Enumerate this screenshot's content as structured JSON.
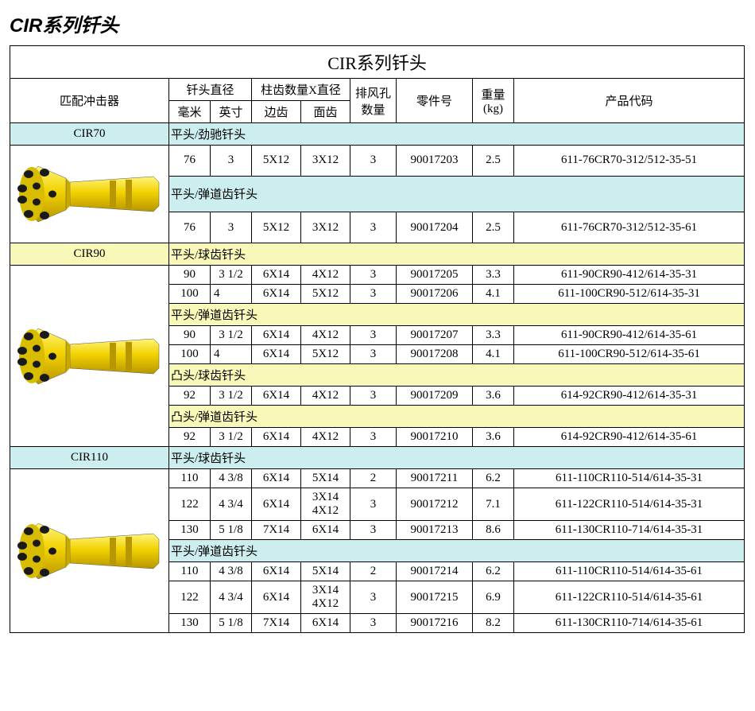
{
  "pageTitle": "CIR系列钎头",
  "tableTitle": "CIR系列钎头",
  "headers": {
    "impactor": "匹配冲击器",
    "diameter": "钎头直径",
    "buttons": "柱齿数量X直径",
    "mm": "毫米",
    "inch": "英寸",
    "side": "边齿",
    "face": "面齿",
    "holes": "排风孔\n数量",
    "part": "零件号",
    "weight": "重量\n(kg)",
    "code": "产品代码"
  },
  "colors": {
    "blue": "#cceeee",
    "yellow": "#f8f8b8",
    "bitBody": "#f2d200",
    "bitDark": "#c7a900",
    "button": "#1a1a1a"
  },
  "groups": [
    {
      "name": "CIR70",
      "nameBg": "blue",
      "sections": [
        {
          "label": "平头/劲驰钎头",
          "bg": "blue",
          "rows": [
            {
              "mm": "76",
              "in": "3",
              "side": "5X12",
              "face": "3X12",
              "holes": "3",
              "part": "90017203",
              "wt": "2.5",
              "code": "611-76CR70-312/512-35-51"
            }
          ]
        },
        {
          "label": "平头/弹道齿钎头",
          "bg": "blue",
          "rows": [
            {
              "mm": "76",
              "in": "3",
              "side": "5X12",
              "face": "3X12",
              "holes": "3",
              "part": "90017204",
              "wt": "2.5",
              "code": "611-76CR70-312/512-35-61"
            }
          ]
        }
      ]
    },
    {
      "name": "CIR90",
      "nameBg": "yellow",
      "sections": [
        {
          "label": "平头/球齿钎头",
          "bg": "yellow",
          "rows": [
            {
              "mm": "90",
              "in": "3 1/2",
              "side": "6X14",
              "face": "4X12",
              "holes": "3",
              "part": "90017205",
              "wt": "3.3",
              "code": "611-90CR90-412/614-35-31"
            },
            {
              "mm": "100",
              "in": "4",
              "side": "6X14",
              "face": "5X12",
              "holes": "3",
              "part": "90017206",
              "wt": "4.1",
              "code": "611-100CR90-512/614-35-31",
              "leftIn": true
            }
          ]
        },
        {
          "label": "平头/弹道齿钎头",
          "bg": "yellow",
          "rows": [
            {
              "mm": "90",
              "in": "3 1/2",
              "side": "6X14",
              "face": "4X12",
              "holes": "3",
              "part": "90017207",
              "wt": "3.3",
              "code": "611-90CR90-412/614-35-61"
            },
            {
              "mm": "100",
              "in": "4",
              "side": "6X14",
              "face": "5X12",
              "holes": "3",
              "part": "90017208",
              "wt": "4.1",
              "code": "611-100CR90-512/614-35-61",
              "leftIn": true
            }
          ]
        },
        {
          "label": "凸头/球齿钎头",
          "bg": "yellow",
          "rows": [
            {
              "mm": "92",
              "in": "3 1/2",
              "side": "6X14",
              "face": "4X12",
              "holes": "3",
              "part": "90017209",
              "wt": "3.6",
              "code": "614-92CR90-412/614-35-31"
            }
          ]
        },
        {
          "label": "凸头/弹道齿钎头",
          "bg": "yellow",
          "rows": [
            {
              "mm": "92",
              "in": "3 1/2",
              "side": "6X14",
              "face": "4X12",
              "holes": "3",
              "part": "90017210",
              "wt": "3.6",
              "code": "614-92CR90-412/614-35-61"
            }
          ]
        }
      ]
    },
    {
      "name": "CIR110",
      "nameBg": "blue",
      "sections": [
        {
          "label": "平头/球齿钎头",
          "bg": "blue",
          "rows": [
            {
              "mm": "110",
              "in": "4 3/8",
              "side": "6X14",
              "face": "5X14",
              "holes": "2",
              "part": "90017211",
              "wt": "6.2",
              "code": "611-110CR110-514/614-35-31"
            },
            {
              "mm": "122",
              "in": "4 3/4",
              "side": "6X14",
              "face": "3X14\n4X12",
              "holes": "3",
              "part": "90017212",
              "wt": "7.1",
              "code": "611-122CR110-514/614-35-31"
            },
            {
              "mm": "130",
              "in": "5 1/8",
              "side": "7X14",
              "face": "6X14",
              "holes": "3",
              "part": "90017213",
              "wt": "8.6",
              "code": "611-130CR110-714/614-35-31"
            }
          ]
        },
        {
          "label": "平头/弹道齿钎头",
          "bg": "blue",
          "rows": [
            {
              "mm": "110",
              "in": "4 3/8",
              "side": "6X14",
              "face": "5X14",
              "holes": "2",
              "part": "90017214",
              "wt": "6.2",
              "code": "611-110CR110-514/614-35-61"
            },
            {
              "mm": "122",
              "in": "4 3/4",
              "side": "6X14",
              "face": "3X14\n4X12",
              "holes": "3",
              "part": "90017215",
              "wt": "6.9",
              "code": "611-122CR110-514/614-35-61"
            },
            {
              "mm": "130",
              "in": "5 1/8",
              "side": "7X14",
              "face": "6X14",
              "holes": "3",
              "part": "90017216",
              "wt": "8.2",
              "code": "611-130CR110-714/614-35-61"
            }
          ]
        }
      ]
    }
  ]
}
